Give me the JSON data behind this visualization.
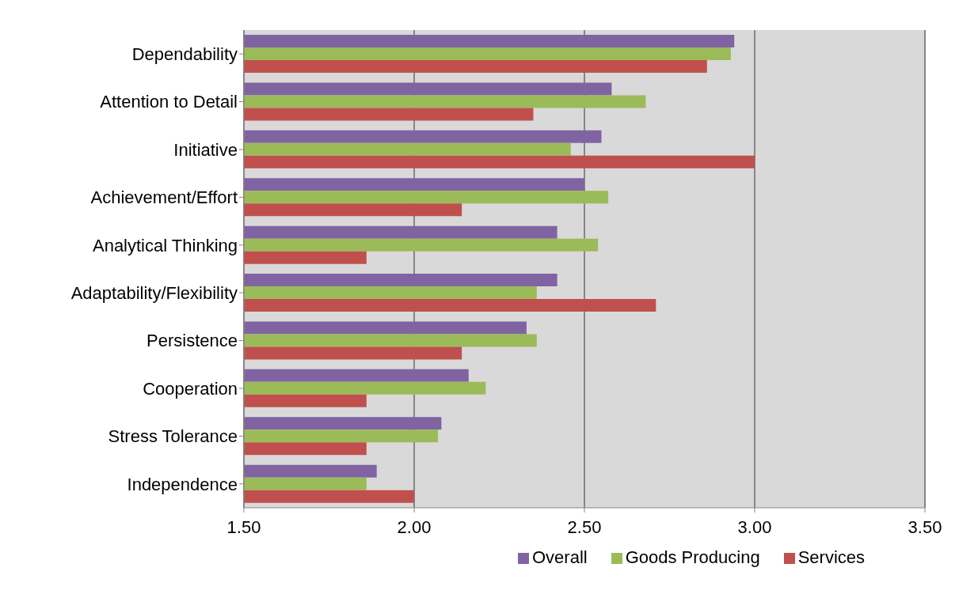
{
  "chart_data": {
    "type": "bar",
    "orientation": "horizontal",
    "categories": [
      "Dependability",
      "Attention to Detail",
      "Initiative",
      "Achievement/Effort",
      "Analytical Thinking",
      "Adaptability/Flexibility",
      "Persistence",
      "Cooperation",
      "Stress Tolerance",
      "Independence"
    ],
    "series": [
      {
        "name": "Overall",
        "color": "#8064a2",
        "values": [
          2.94,
          2.58,
          2.55,
          2.5,
          2.42,
          2.42,
          2.33,
          2.16,
          2.08,
          1.89
        ]
      },
      {
        "name": "Goods Producing",
        "color": "#9bbb59",
        "values": [
          2.93,
          2.68,
          2.46,
          2.57,
          2.54,
          2.36,
          2.36,
          2.21,
          2.07,
          1.86
        ]
      },
      {
        "name": "Services",
        "color": "#c0504d",
        "values": [
          2.86,
          2.35,
          3.0,
          2.14,
          1.86,
          2.71,
          2.14,
          1.86,
          1.86,
          2.0
        ]
      }
    ],
    "xlim": [
      1.5,
      3.5
    ],
    "xticks": [
      {
        "value": 1.5,
        "label": "1.50"
      },
      {
        "value": 2,
        "label": "2.00"
      },
      {
        "value": 2.5,
        "label": "2.50"
      },
      {
        "value": 3,
        "label": "3.00"
      },
      {
        "value": 3.5,
        "label": "3.50"
      }
    ],
    "grid": "x",
    "legend": "bottom"
  }
}
